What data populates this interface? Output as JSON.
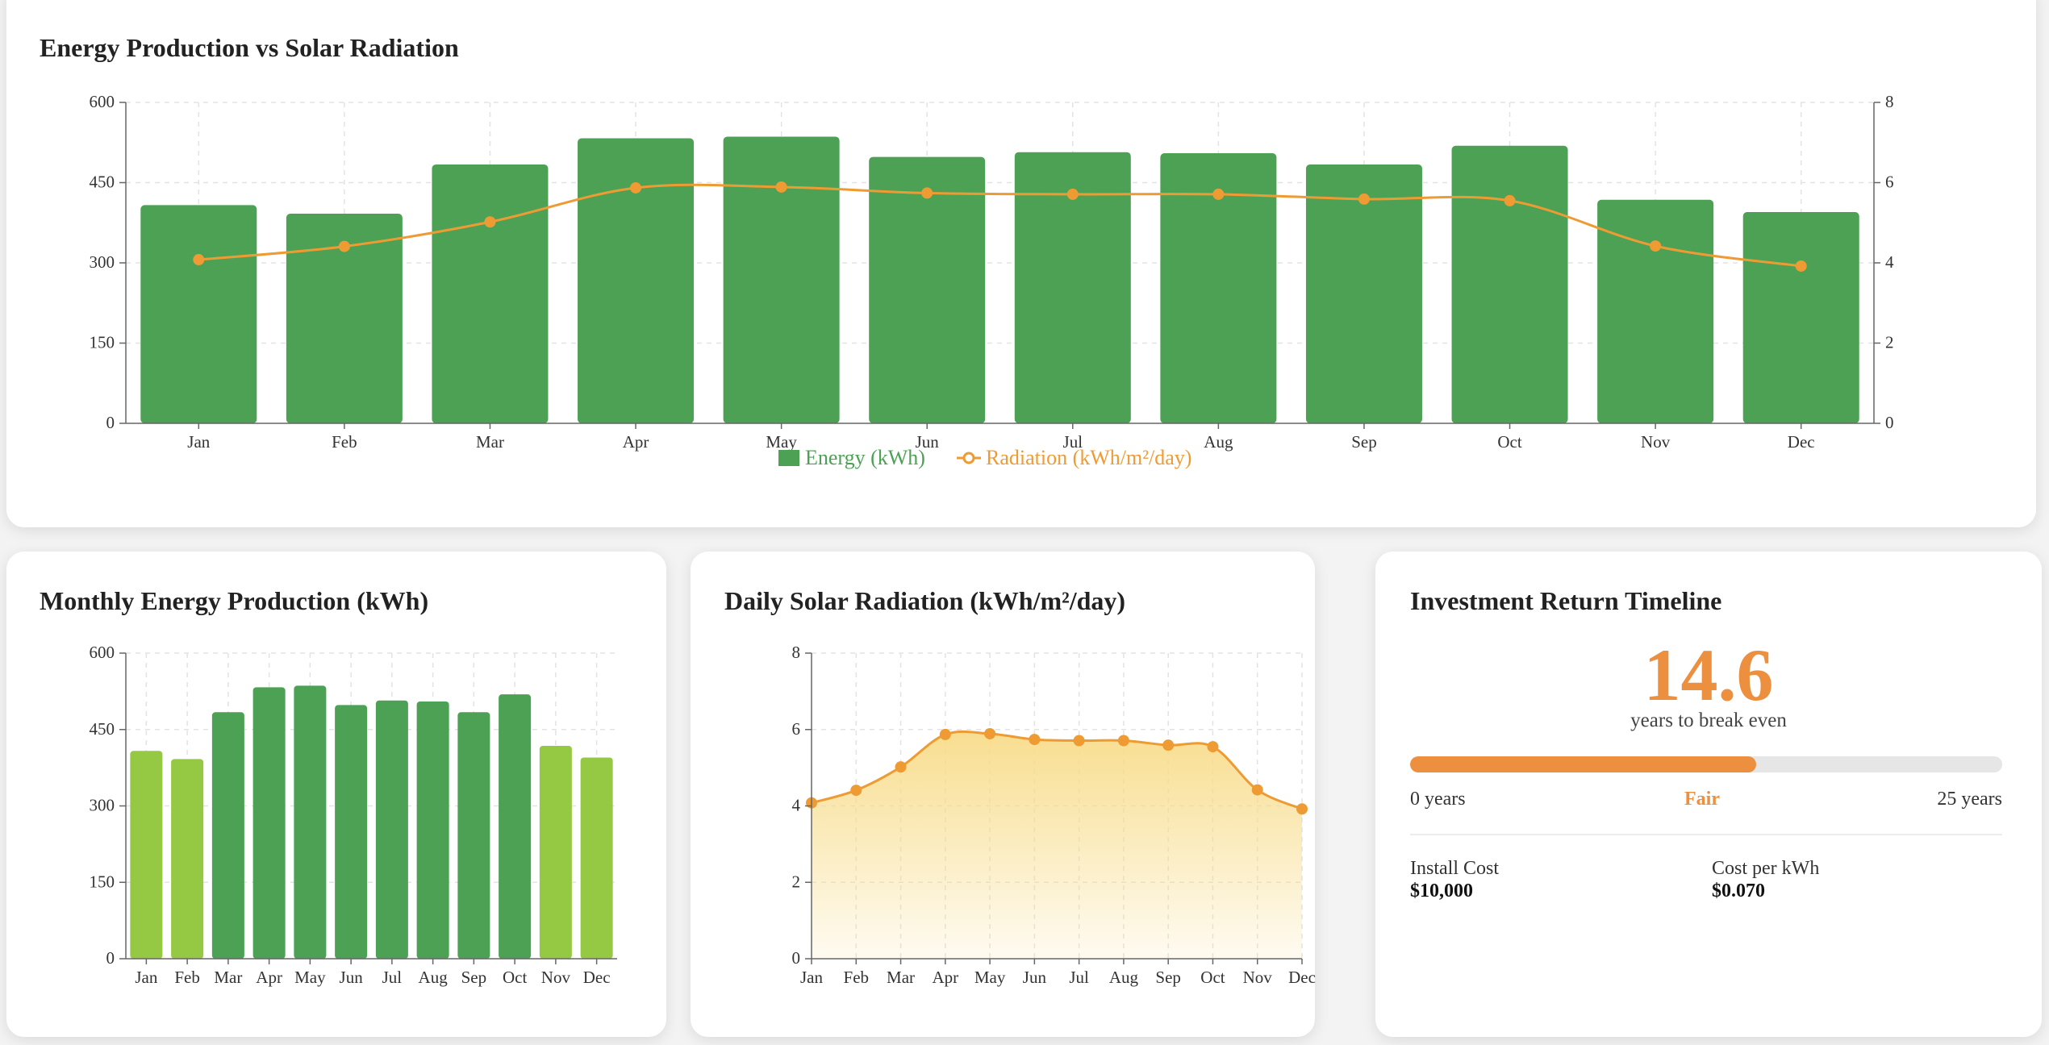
{
  "combined": {
    "title": "Energy Production vs Solar Radiation",
    "legend_energy": "Energy (kWh)",
    "legend_radiation": "Radiation (kWh/m²/day)"
  },
  "energy_panel": {
    "title": "Monthly Energy Production (kWh)"
  },
  "radiation_panel": {
    "title": "Daily Solar Radiation (kWh/m²/day)"
  },
  "roi": {
    "title": "Investment Return Timeline",
    "years": "14.6",
    "years_label": "years to break even",
    "progress_fraction": 0.584,
    "min_label": "0 years",
    "max_label": "25 years",
    "rating": "Fair",
    "install_cost_label": "Install Cost",
    "install_cost": "$10,000",
    "cost_per_kwh_label": "Cost per kWh",
    "cost_per_kwh": "$0.070"
  },
  "colors": {
    "energy_bar": "#4ca154",
    "energy_bar_low": "#95c843",
    "radiation_line": "#ee9b34",
    "area_fill_top": "#f8dc8a",
    "progress": "#ec8f3f"
  },
  "chart_data": [
    {
      "type": "bar",
      "categories": [
        "Jan",
        "Feb",
        "Mar",
        "Apr",
        "May",
        "Jun",
        "Jul",
        "Aug",
        "Sep",
        "Oct",
        "Nov",
        "Dec"
      ],
      "series": [
        {
          "name": "Energy (kWh)",
          "values": [
            408,
            392,
            484,
            533,
            536,
            498,
            507,
            505,
            484,
            519,
            418,
            395
          ],
          "axis": "left"
        },
        {
          "name": "Radiation (kWh/m²/day)",
          "values": [
            4.08,
            4.41,
            5.02,
            5.87,
            5.89,
            5.74,
            5.71,
            5.71,
            5.59,
            5.55,
            4.42,
            3.92
          ],
          "axis": "right",
          "type": "line"
        }
      ],
      "yticks_left": [
        "0",
        "150",
        "300",
        "450",
        "600"
      ],
      "yticks_right": [
        "0",
        "2",
        "4",
        "6",
        "8"
      ],
      "ylim_left": [
        0,
        600
      ],
      "ylim_right": [
        0,
        8
      ],
      "grid": true,
      "legend": "bottom"
    },
    {
      "type": "bar",
      "categories": [
        "Jan",
        "Feb",
        "Mar",
        "Apr",
        "May",
        "Jun",
        "Jul",
        "Aug",
        "Sep",
        "Oct",
        "Nov",
        "Dec"
      ],
      "values": [
        408,
        392,
        484,
        533,
        536,
        498,
        507,
        505,
        484,
        519,
        418,
        395
      ],
      "low_months": [
        0,
        1,
        10,
        11
      ],
      "yticks": [
        "0",
        "150",
        "300",
        "450",
        "600"
      ],
      "ylim": [
        0,
        600
      ],
      "grid": true
    },
    {
      "type": "area",
      "categories": [
        "Jan",
        "Feb",
        "Mar",
        "Apr",
        "May",
        "Jun",
        "Jul",
        "Aug",
        "Sep",
        "Oct",
        "Nov",
        "Dec"
      ],
      "values": [
        4.08,
        4.41,
        5.02,
        5.87,
        5.89,
        5.74,
        5.71,
        5.71,
        5.59,
        5.55,
        4.42,
        3.92
      ],
      "yticks": [
        "0",
        "2",
        "4",
        "6",
        "8"
      ],
      "ylim": [
        0,
        8
      ],
      "grid": true
    }
  ]
}
